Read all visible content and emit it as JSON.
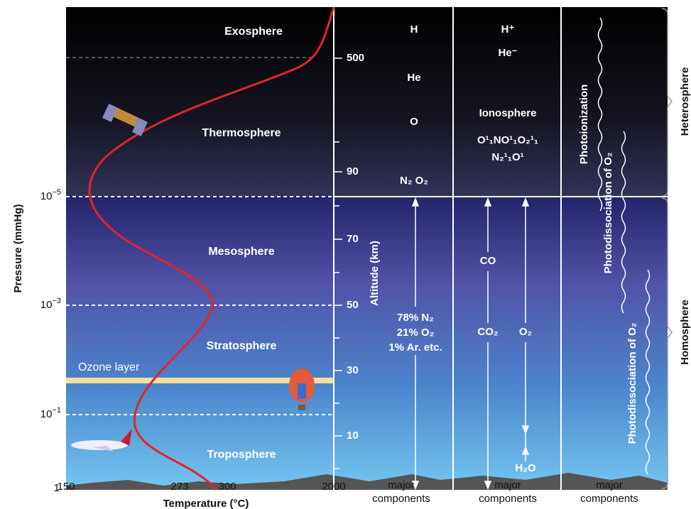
{
  "axes": {
    "pressure_title": "Pressure (mmHg)",
    "pressure_ticks": [
      {
        "base": "10",
        "exp": "−5"
      },
      {
        "base": "10",
        "exp": "−3"
      },
      {
        "base": "10",
        "exp": "−1"
      },
      {
        "base": "1"
      }
    ],
    "temperature_title": "Temperature (°C)",
    "temperature_ticks": [
      "150",
      "273",
      "300",
      "2000"
    ],
    "altitude_title": "Altitude (km)",
    "altitude_ticks": [
      "500",
      "90",
      "70",
      "50",
      "30",
      "10"
    ]
  },
  "layers": [
    "Exosphere",
    "Thermosphere",
    "Mesosphere",
    "Stratosphere",
    "Troposphere"
  ],
  "ozone": "Ozone layer",
  "columns": [
    {
      "items": [
        "H",
        "He",
        "O",
        "N₂ O₂"
      ],
      "block": [
        "78% N₂",
        "21% O₂",
        "1% Ar. etc."
      ],
      "footer": [
        "major",
        "components"
      ]
    },
    {
      "items": [
        "H⁺",
        "He⁻",
        "Ionosphere",
        "O¹₁NO¹₁O₂¹₁",
        "N₂¹₁O¹",
        "CO",
        "CO₂",
        "O₂",
        "H₂O"
      ],
      "footer": [
        "major",
        "components"
      ]
    },
    {
      "items": [
        "Photoionization",
        "Photodissociation of O₂",
        "Photodissociation of O₂"
      ],
      "footer": [
        "major",
        "components"
      ]
    }
  ],
  "regions": [
    "Heterosphere",
    "Homosphere"
  ]
}
